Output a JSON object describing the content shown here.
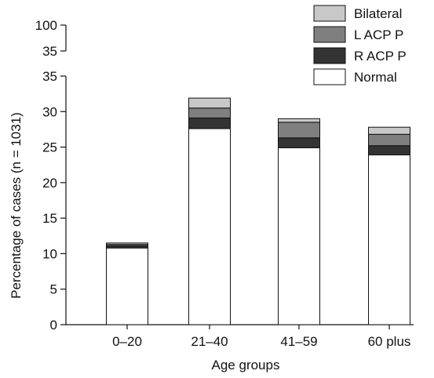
{
  "chart_data": {
    "type": "bar",
    "stacked": true,
    "title": "",
    "xlabel": "Age groups",
    "ylabel": "Percentage of cases (n = 1031)",
    "categories": [
      "0–20",
      "21–40",
      "41–59",
      "60 plus"
    ],
    "series": [
      {
        "name": "Normal",
        "values": [
          10.8,
          27.6,
          24.9,
          23.9
        ],
        "color": "#ffffff"
      },
      {
        "name": "R ACP P",
        "values": [
          0.3,
          1.5,
          1.4,
          1.3
        ],
        "color": "#333333"
      },
      {
        "name": "L ACP P",
        "values": [
          0.2,
          1.4,
          2.2,
          1.6
        ],
        "color": "#7f7f7f"
      },
      {
        "name": "Bilateral",
        "values": [
          0.2,
          1.4,
          0.5,
          1.0
        ],
        "color": "#c8c8c8"
      }
    ],
    "ylim": [
      0,
      35
    ],
    "yticks": [
      "0",
      "5",
      "10",
      "15",
      "20",
      "25",
      "30",
      "35"
    ],
    "axis_break_ticks": [
      "35",
      "100"
    ],
    "legend": {
      "position": "top-right",
      "entries": [
        "Bilateral",
        "L ACP P",
        "R ACP P",
        "Normal"
      ]
    },
    "grid": false
  }
}
